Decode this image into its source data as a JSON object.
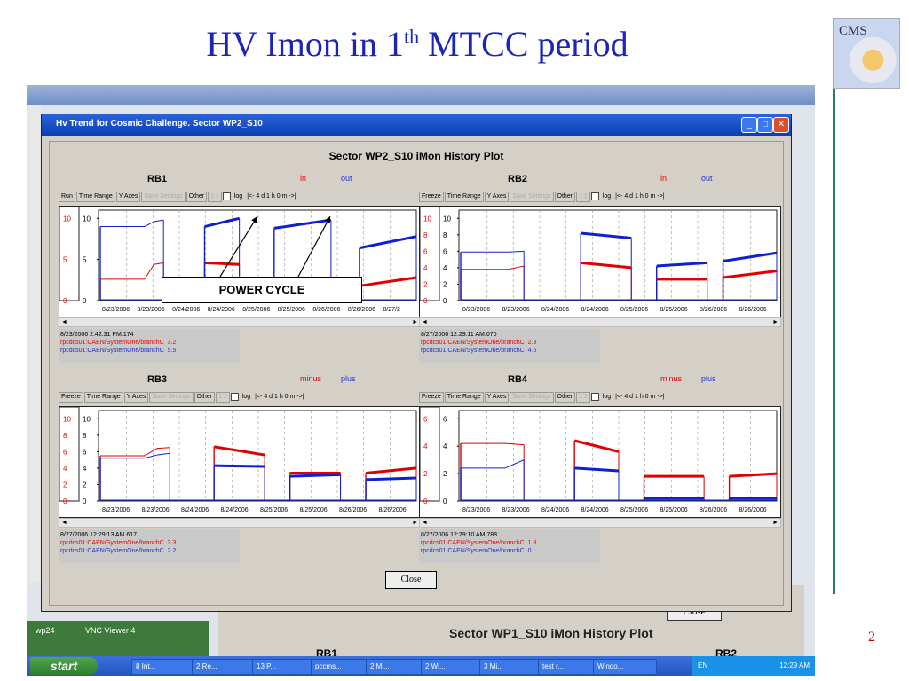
{
  "slide": {
    "title_main": "HV Imon in 1",
    "title_sup": "th",
    "title_rest": " MTCC period",
    "logo_text": "CMS",
    "page_number": "2"
  },
  "desktop": {
    "greenbar_left": "wp24",
    "greenbar_right": "VNC Viewer 4"
  },
  "background_window": {
    "close_label": "Close",
    "title": "Sector WP1_S10 iMon History Plot",
    "label_left": "RB1",
    "label_right": "RB2"
  },
  "taskbar": {
    "start_label": "start",
    "items": [
      "8 Int...",
      "2 Re...",
      "13 P...",
      "pccms...",
      "2 Mi...",
      "2 Wi...",
      "3 Mi...",
      "test r...",
      "Windo..."
    ],
    "lang": "EN",
    "clock": "12:29 AM"
  },
  "window": {
    "title": "Hv Trend for Cosmic Challenge. Sector WP2_S10",
    "plot_title": "Sector WP2_S10 iMon History Plot",
    "close_label": "Close",
    "toolbar": {
      "time_range": "Time Range",
      "y_axes": "Y Axes",
      "save_settings": "Save Settings",
      "other": "Other",
      "one_one": "1:1",
      "log": "log",
      "nav": "|<-  4 d 1 h 0 m    ->|"
    }
  },
  "annotation": {
    "power_cycle": "POWER CYCLE"
  },
  "colors": {
    "series_red": "#e00000",
    "series_blue": "#1020d0",
    "title_blue": "#1d24b8"
  },
  "chart_data": [
    {
      "type": "line",
      "title": "RB1",
      "run_button": "Run",
      "legend": [
        "in",
        "out"
      ],
      "yticks": [
        "10",
        "5",
        "0"
      ],
      "ylim": [
        0,
        11
      ],
      "xticks": [
        "8/23/2006",
        "8/23/2006",
        "8/24/2006",
        "8/24/2006",
        "8/25/2006",
        "8/25/2006",
        "8/26/2006",
        "8/26/2006",
        "8/27/2"
      ],
      "scroll_timestamp": "8/23/2006 2:42:31 PM.174",
      "channels": [
        {
          "name": "rpcdcs01:CAEN/SystemOne/branchC",
          "value": "3.2",
          "color": "red"
        },
        {
          "name": "rpcdcs01:CAEN/SystemOne/branchC",
          "value": "5.5",
          "color": "blue"
        }
      ],
      "series": [
        {
          "color": "red",
          "segments": [
            [
              [
                0,
                2.6
              ],
              [
                0.14,
                2.6
              ],
              [
                0.17,
                4.4
              ],
              [
                0.2,
                4.6
              ]
            ],
            [
              [
                0.33,
                4.6
              ],
              [
                0.44,
                4.4
              ]
            ],
            [
              [
                0.55,
                2.4
              ],
              [
                0.73,
                2.4
              ]
            ],
            [
              [
                0.82,
                1.8
              ],
              [
                1,
                2.8
              ]
            ]
          ]
        },
        {
          "color": "blue",
          "segments": [
            [
              [
                0,
                9
              ],
              [
                0.14,
                9
              ],
              [
                0.17,
                9.6
              ],
              [
                0.2,
                9.8
              ]
            ],
            [
              [
                0.33,
                9
              ],
              [
                0.44,
                10
              ]
            ],
            [
              [
                0.55,
                8.8
              ],
              [
                0.73,
                9.8
              ]
            ],
            [
              [
                0.82,
                6.4
              ],
              [
                1,
                7.8
              ]
            ]
          ]
        }
      ]
    },
    {
      "type": "line",
      "title": "RB2",
      "run_button": "Freeze",
      "legend": [
        "in",
        "out"
      ],
      "yticks": [
        "10",
        "8",
        "6",
        "4",
        "2",
        "0"
      ],
      "ylim": [
        0,
        11
      ],
      "xticks": [
        "8/23/2006",
        "8/23/2006",
        "8/24/2006",
        "8/24/2006",
        "8/25/2006",
        "8/25/2006",
        "8/26/2006",
        "8/26/2006"
      ],
      "scroll_timestamp": "8/27/2006 12:29:11 AM.070",
      "channels": [
        {
          "name": "rpcdcs01:CAEN/SystemOne/branchC",
          "value": "2.8",
          "color": "red"
        },
        {
          "name": "rpcdcs01:CAEN/SystemOne/branchC",
          "value": "4.6",
          "color": "blue"
        }
      ],
      "series": [
        {
          "color": "red",
          "segments": [
            [
              [
                0,
                3.8
              ],
              [
                0.15,
                3.8
              ],
              [
                0.2,
                4.2
              ]
            ],
            [
              [
                0.38,
                4.6
              ],
              [
                0.54,
                4
              ]
            ],
            [
              [
                0.62,
                2.6
              ],
              [
                0.78,
                2.6
              ]
            ],
            [
              [
                0.83,
                2.8
              ],
              [
                1,
                3.6
              ]
            ]
          ]
        },
        {
          "color": "blue",
          "segments": [
            [
              [
                0,
                5.9
              ],
              [
                0.15,
                5.9
              ],
              [
                0.2,
                6
              ]
            ],
            [
              [
                0.38,
                8.2
              ],
              [
                0.54,
                7.6
              ]
            ],
            [
              [
                0.62,
                4.2
              ],
              [
                0.78,
                4.6
              ]
            ],
            [
              [
                0.83,
                4.8
              ],
              [
                1,
                5.8
              ]
            ]
          ]
        }
      ]
    },
    {
      "type": "line",
      "title": "RB3",
      "run_button": "Freeze",
      "legend": [
        "minus",
        "plus"
      ],
      "yticks": [
        "10",
        "8",
        "6",
        "4",
        "2",
        "0"
      ],
      "ylim": [
        0,
        11
      ],
      "xticks": [
        "8/23/2006",
        "8/23/2006",
        "8/24/2006",
        "8/24/2006",
        "8/25/2006",
        "8/25/2006",
        "8/26/2006",
        "8/26/2006"
      ],
      "scroll_timestamp": "8/27/2006 12:29:13 AM.617",
      "channels": [
        {
          "name": "rpcdcs01:CAEN/SystemOne/branchC",
          "value": "3.3",
          "color": "red"
        },
        {
          "name": "rpcdcs01:CAEN/SystemOne/branchC",
          "value": "2.2",
          "color": "blue"
        }
      ],
      "series": [
        {
          "color": "red",
          "segments": [
            [
              [
                0,
                5.5
              ],
              [
                0.14,
                5.5
              ],
              [
                0.18,
                6.4
              ],
              [
                0.22,
                6.5
              ]
            ],
            [
              [
                0.36,
                6.6
              ],
              [
                0.52,
                5.6
              ]
            ],
            [
              [
                0.6,
                3.4
              ],
              [
                0.76,
                3.4
              ]
            ],
            [
              [
                0.84,
                3.4
              ],
              [
                1,
                4
              ]
            ]
          ]
        },
        {
          "color": "blue",
          "segments": [
            [
              [
                0,
                5.2
              ],
              [
                0.14,
                5.2
              ],
              [
                0.18,
                5.6
              ],
              [
                0.22,
                5.8
              ]
            ],
            [
              [
                0.36,
                4.3
              ],
              [
                0.52,
                4.2
              ]
            ],
            [
              [
                0.6,
                3
              ],
              [
                0.76,
                3.2
              ]
            ],
            [
              [
                0.84,
                2.6
              ],
              [
                1,
                2.8
              ]
            ]
          ]
        }
      ]
    },
    {
      "type": "line",
      "title": "RB4",
      "run_button": "Freeze",
      "legend": [
        "minus",
        "plus"
      ],
      "yticks": [
        "6",
        "4",
        "2",
        "0"
      ],
      "ylim": [
        0,
        6.6
      ],
      "xticks": [
        "8/23/2006",
        "8/23/2006",
        "8/24/2006",
        "8/24/2006",
        "8/25/2006",
        "8/25/2006",
        "8/26/2006",
        "8/26/2006"
      ],
      "scroll_timestamp": "8/27/2006 12:29:10 AM.788",
      "channels": [
        {
          "name": "rpcdcs01:CAEN/SystemOne/branchC",
          "value": "1.8",
          "color": "red"
        },
        {
          "name": "rpcdcs01:CAEN/SystemOne/branchC",
          "value": "0",
          "color": "blue"
        }
      ],
      "series": [
        {
          "color": "red",
          "segments": [
            [
              [
                0,
                4.2
              ],
              [
                0.14,
                4.2
              ],
              [
                0.2,
                4.1
              ]
            ],
            [
              [
                0.36,
                4.4
              ],
              [
                0.5,
                3.6
              ]
            ],
            [
              [
                0.58,
                1.8
              ],
              [
                0.77,
                1.8
              ]
            ],
            [
              [
                0.85,
                1.8
              ],
              [
                1,
                2
              ]
            ]
          ]
        },
        {
          "color": "blue",
          "segments": [
            [
              [
                0,
                2.4
              ],
              [
                0.14,
                2.4
              ],
              [
                0.2,
                3
              ]
            ],
            [
              [
                0.36,
                2.4
              ],
              [
                0.5,
                2.2
              ]
            ],
            [
              [
                0.58,
                0.2
              ],
              [
                0.77,
                0.2
              ]
            ],
            [
              [
                0.85,
                0.2
              ],
              [
                1,
                0.2
              ]
            ]
          ]
        }
      ]
    }
  ]
}
